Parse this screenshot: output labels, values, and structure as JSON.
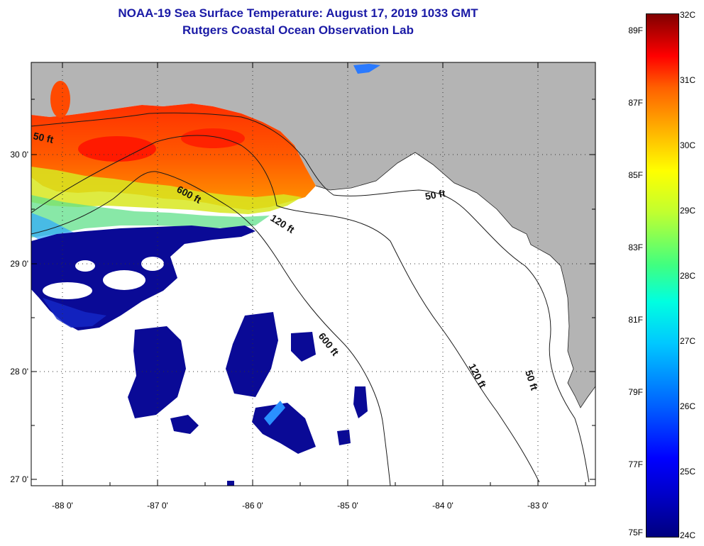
{
  "title_line1": "NOAA-19 Sea Surface Temperature:  August 17, 2019 1033 GMT",
  "title_line2": "Rutgers Coastal Ocean Observation Lab",
  "lat_labels": [
    "30 0'",
    "29 0'",
    "28 0'",
    "27 0'"
  ],
  "lon_labels": [
    "-88 0'",
    "-87 0'",
    "-86 0'",
    "-85 0'",
    "-84 0'",
    "-83 0'"
  ],
  "contour_labels": {
    "c50_west": "50 ft",
    "c600_north": "600 ft",
    "c120_north": "120 ft",
    "c50_east": "50 ft",
    "c600_south": "600 ft",
    "c120_south": "120 ft",
    "c50_south": "50 ft"
  },
  "colorbar": {
    "fahrenheit": [
      "89F",
      "87F",
      "85F",
      "83F",
      "81F",
      "79F",
      "77F",
      "75F"
    ],
    "celsius": [
      "32C",
      "31C",
      "30C",
      "29C",
      "28C",
      "27C",
      "26C",
      "25C",
      "24C"
    ],
    "range_c": [
      24,
      32
    ]
  },
  "colors": {
    "land": "#b4b4b4",
    "sea_nodata": "#ffffff",
    "title": "#1a1aa6"
  }
}
